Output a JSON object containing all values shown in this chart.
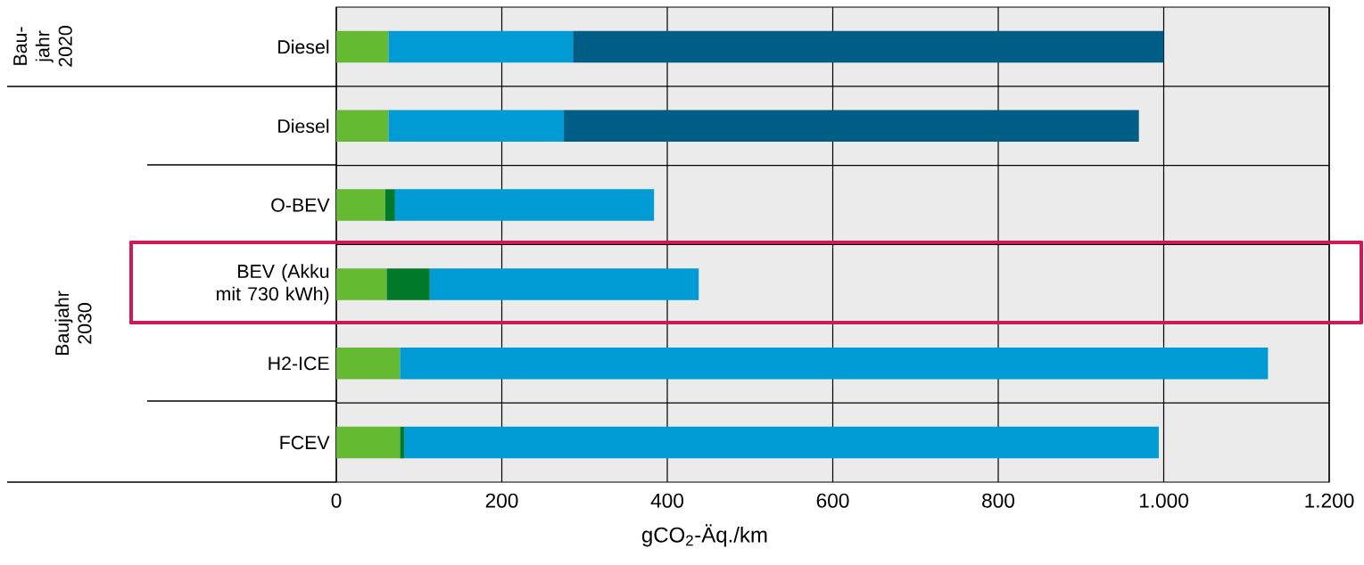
{
  "chart_data": {
    "type": "bar",
    "orientation": "horizontal",
    "stacked": true,
    "categories": [
      "Diesel",
      "Diesel",
      "O-BEV",
      "BEV (Akku mit 730 kWh)",
      "H2-ICE",
      "FCEV"
    ],
    "series": [
      {
        "color": "#66b933",
        "values": [
          63,
          63,
          59,
          61,
          77,
          77
        ]
      },
      {
        "color": "#007a2a",
        "values": [
          null,
          null,
          12,
          52,
          null,
          5
        ]
      },
      {
        "color": "#009bd5",
        "values": [
          223,
          212,
          313,
          325,
          1049,
          912
        ]
      },
      {
        "color": "#005d85",
        "values": [
          714,
          695,
          null,
          null,
          null,
          null
        ]
      }
    ],
    "xlim": [
      0,
      1200
    ],
    "xticks": [
      0,
      200,
      400,
      600,
      800,
      {
        "value": 1000,
        "label": "1.000"
      },
      {
        "value": 1200,
        "label": "1.200"
      }
    ],
    "xlabel": "gCO$_{2}$-Äq./km",
    "grid": true,
    "annotations": [
      "Bau-jahr 2020",
      "Baujahr 2030"
    ]
  }
}
